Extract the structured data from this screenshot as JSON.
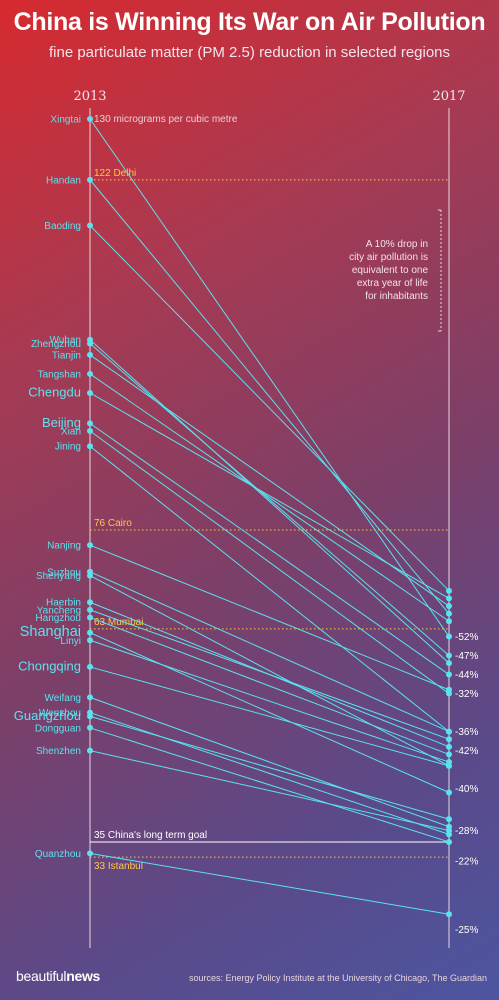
{
  "header": {
    "title": "China is Winning Its War on Air Pollution",
    "subtitle": "fine particulate matter (PM 2.5) reduction in selected regions"
  },
  "footer": {
    "brand_regular": "beautiful",
    "brand_bold": "news",
    "source": "sources: Energy Policy Institute at the University of Chicago, The Guardian"
  },
  "note_lines": [
    "A 10% drop in",
    "city air pollution is",
    "equivalent to one",
    "extra year of life",
    "for inhabitants"
  ],
  "colors": {
    "line": "#5be2ef",
    "reference": "#ffc842",
    "goal": "#ffffff"
  },
  "chart_data": {
    "type": "slope",
    "x": [
      "2013",
      "2017"
    ],
    "ylim": [
      20,
      132
    ],
    "value_label": "130 micrograms per cubic metre",
    "cities": [
      {
        "name": "Xingtai",
        "v2013": 130,
        "v2017": 62,
        "size": "normal"
      },
      {
        "name": "Handan",
        "v2013": 122,
        "v2017": 65,
        "size": "normal"
      },
      {
        "name": "Baoding",
        "v2013": 116,
        "v2017": 68,
        "size": "normal"
      },
      {
        "name": "Wuhan",
        "v2013": 101,
        "v2017": 58.5,
        "size": "normal"
      },
      {
        "name": "Zhengzhou",
        "v2013": 100.5,
        "v2017": 59.5,
        "size": "normal"
      },
      {
        "name": "Tianjin",
        "v2013": 99,
        "v2017": 66,
        "size": "normal"
      },
      {
        "name": "Tangshan",
        "v2013": 96.5,
        "v2017": 64,
        "size": "normal"
      },
      {
        "name": "Chengdu",
        "v2013": 94,
        "v2017": 67,
        "size": "big"
      },
      {
        "name": "Beijing",
        "v2013": 90,
        "v2017": 57,
        "size": "big"
      },
      {
        "name": "Xian",
        "v2013": 89,
        "v2017": 54.5,
        "size": "normal"
      },
      {
        "name": "Jining",
        "v2013": 87,
        "v2017": 49.5,
        "size": "normal"
      },
      {
        "name": "Nanjing",
        "v2013": 74,
        "v2017": 55,
        "size": "normal"
      },
      {
        "name": "Suzhou",
        "v2013": 70.5,
        "v2017": 49.5,
        "size": "normal"
      },
      {
        "name": "Shenyang",
        "v2013": 70,
        "v2017": 45,
        "size": "normal"
      },
      {
        "name": "Haerbin",
        "v2013": 66.5,
        "v2017": 47.5,
        "size": "normal"
      },
      {
        "name": "Yancheng",
        "v2013": 65.5,
        "v2017": 48.5,
        "size": "normal"
      },
      {
        "name": "Hangzhou",
        "v2013": 64.5,
        "v2017": 46.5,
        "size": "normal"
      },
      {
        "name": "Shanghai",
        "v2013": 62.5,
        "v2017": 41.5,
        "size": "xl"
      },
      {
        "name": "Linyi",
        "v2013": 61.5,
        "v2017": 45.5,
        "size": "normal"
      },
      {
        "name": "Chongqing",
        "v2013": 58,
        "v2017": 45,
        "size": "big"
      },
      {
        "name": "Weifang",
        "v2013": 54,
        "v2017": 37,
        "size": "normal"
      },
      {
        "name": "Wenzhou",
        "v2013": 52,
        "v2017": 36,
        "size": "normal"
      },
      {
        "name": "Guangzhou",
        "v2013": 51.5,
        "v2017": 38,
        "size": "big"
      },
      {
        "name": "Dongguan",
        "v2013": 50,
        "v2017": 35,
        "size": "normal"
      },
      {
        "name": "Shenzhen",
        "v2013": 47,
        "v2017": 36.5,
        "size": "normal"
      },
      {
        "name": "Quanzhou",
        "v2013": 33.5,
        "v2017": 25.5,
        "size": "normal"
      }
    ],
    "percent_labels": [
      {
        "text": "-52%",
        "v": 62
      },
      {
        "text": "-47%",
        "v": 59.5
      },
      {
        "text": "-44%",
        "v": 57
      },
      {
        "text": "-32%",
        "v": 54.5
      },
      {
        "text": "-36%",
        "v": 49.5
      },
      {
        "text": "-42%",
        "v": 47
      },
      {
        "text": "-40%",
        "v": 42
      },
      {
        "text": "-28%",
        "v": 36.5
      },
      {
        "text": "-22%",
        "v": 32.5
      },
      {
        "text": "-25%",
        "v": 23.5
      }
    ],
    "references": [
      {
        "label": "122 Delhi",
        "value": 122,
        "kind": "ref"
      },
      {
        "label": "76 Cairo",
        "value": 76,
        "kind": "ref"
      },
      {
        "label": "63 Mumbai",
        "value": 63,
        "kind": "ref"
      },
      {
        "label": "35 China's long term goal",
        "value": 35,
        "kind": "goal"
      },
      {
        "label": "33 Istanbul",
        "value": 33,
        "kind": "ref"
      }
    ]
  }
}
